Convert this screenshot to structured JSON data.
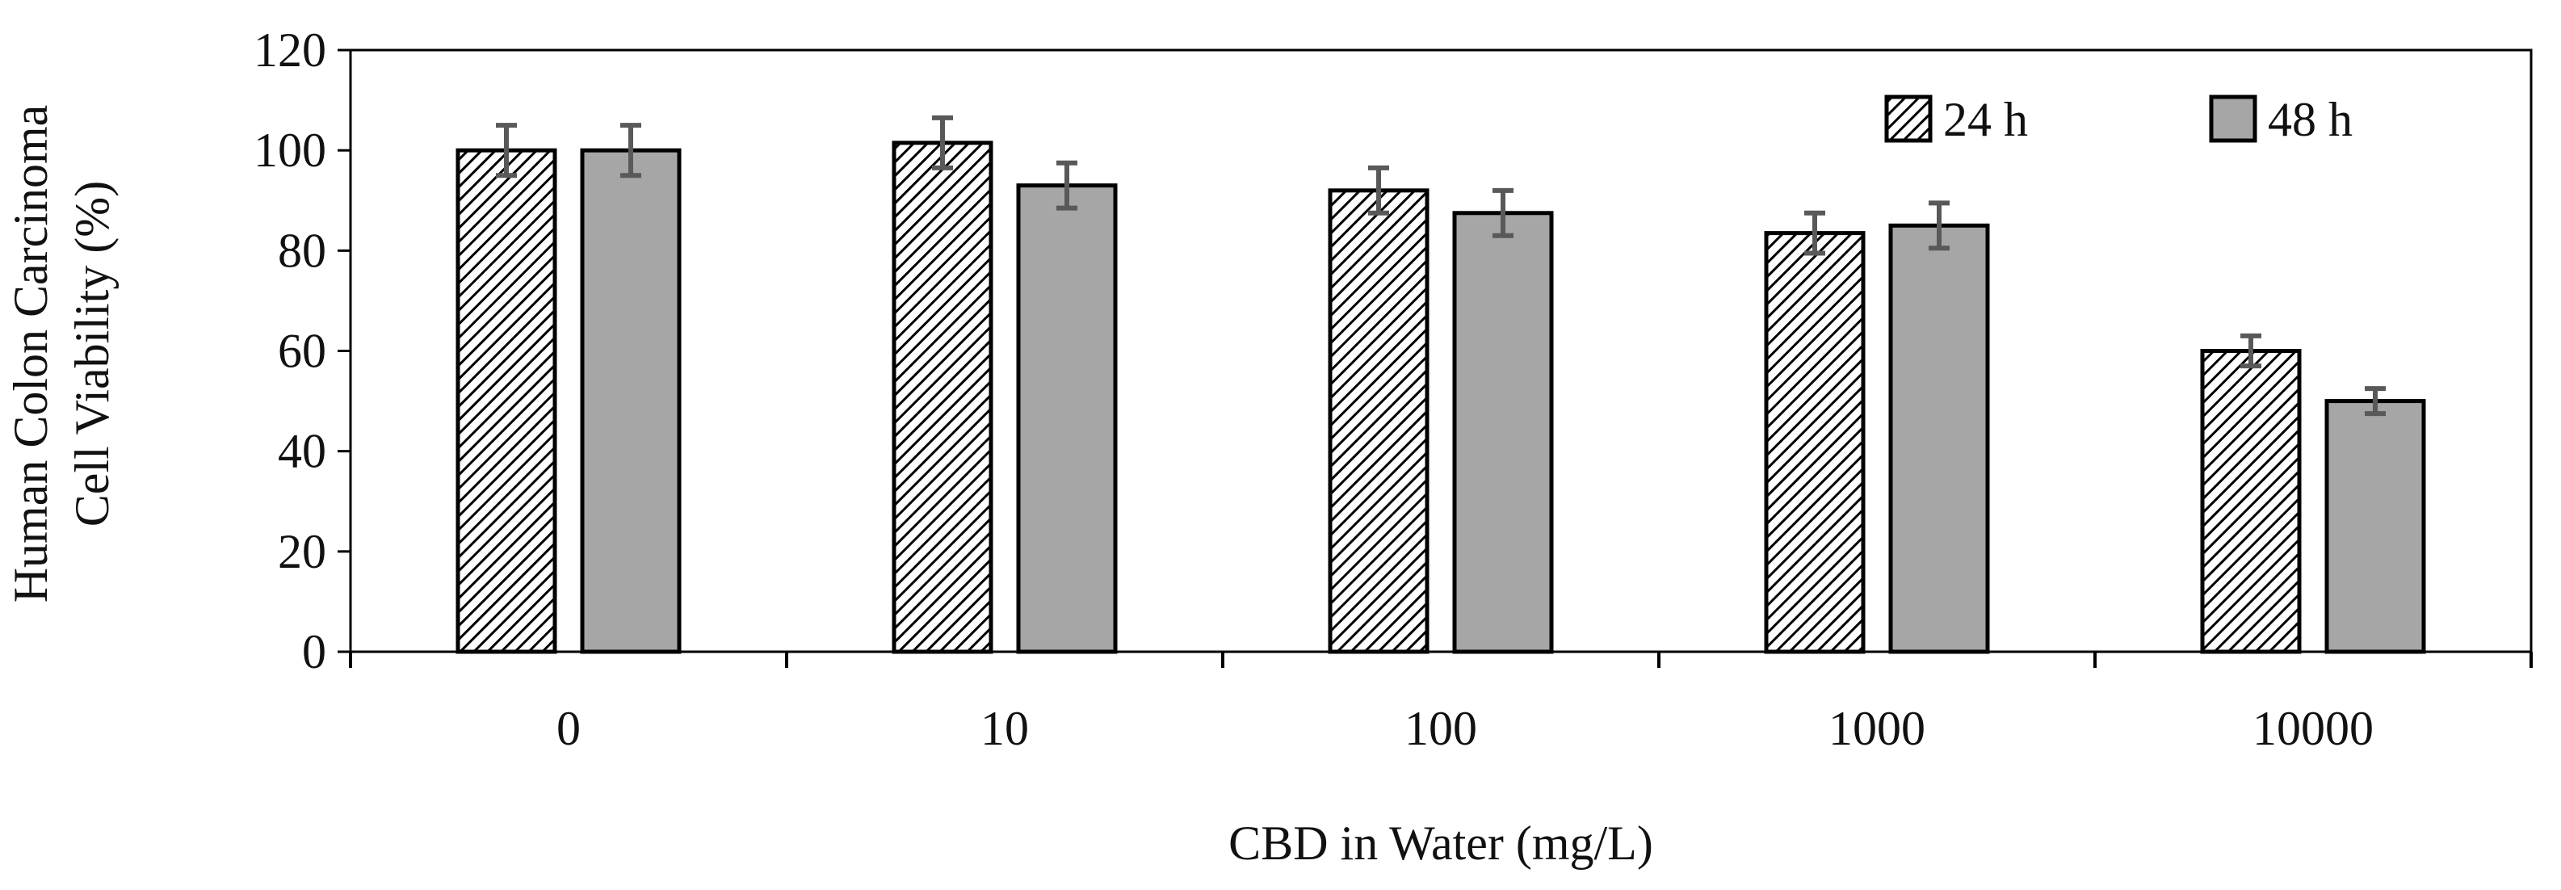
{
  "chart_data": {
    "type": "bar",
    "title": "",
    "xlabel": "CBD in Water (mg/L)",
    "ylabel_lines": [
      "Human Colon Carcinoma",
      "Cell Viability (%)"
    ],
    "categories": [
      "0",
      "10",
      "100",
      "1000",
      "10000"
    ],
    "ylim": [
      0,
      120
    ],
    "yticks": [
      0,
      20,
      40,
      60,
      80,
      100,
      120
    ],
    "grid": false,
    "legend_position": "top-right",
    "series": [
      {
        "name": "24 h",
        "pattern": "diagonal-hatch",
        "values": [
          100,
          101.5,
          92,
          83.5,
          60
        ],
        "errors": [
          5,
          5,
          4.5,
          4,
          3
        ]
      },
      {
        "name": "48 h",
        "pattern": "solid",
        "values": [
          100,
          93,
          87.5,
          85,
          50
        ],
        "errors": [
          5,
          4.5,
          4.5,
          4.5,
          2.5
        ]
      }
    ],
    "colors": {
      "solid_fill": "#a6a6a6",
      "hatch_line": "#000000",
      "bar_stroke": "#000000",
      "error_bar": "#595959",
      "axis": "#000000"
    }
  }
}
